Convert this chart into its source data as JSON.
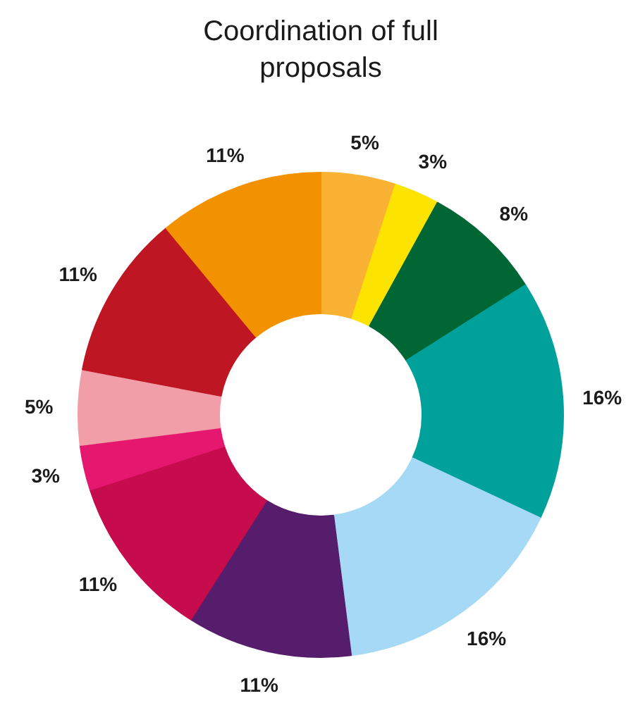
{
  "chart_data": {
    "type": "donut",
    "title": "Coordination of full proposals",
    "categories": [
      null,
      null,
      null,
      null,
      null,
      null,
      null,
      null,
      null,
      null,
      null
    ],
    "values": [
      5,
      3,
      8,
      16,
      16,
      11,
      11,
      3,
      5,
      11,
      11
    ],
    "colors": [
      "#f9b233",
      "#fce300",
      "#006633",
      "#00a19a",
      "#a5d9f5",
      "#551d6b",
      "#c60c4c",
      "#e5176f",
      "#f29ea8",
      "#be1622",
      "#f39200"
    ],
    "value_labels": [
      "5%",
      "3%",
      "8%",
      "16%",
      "16%",
      "11%",
      "11%",
      "3%",
      "5%",
      "11%",
      "11%"
    ]
  }
}
